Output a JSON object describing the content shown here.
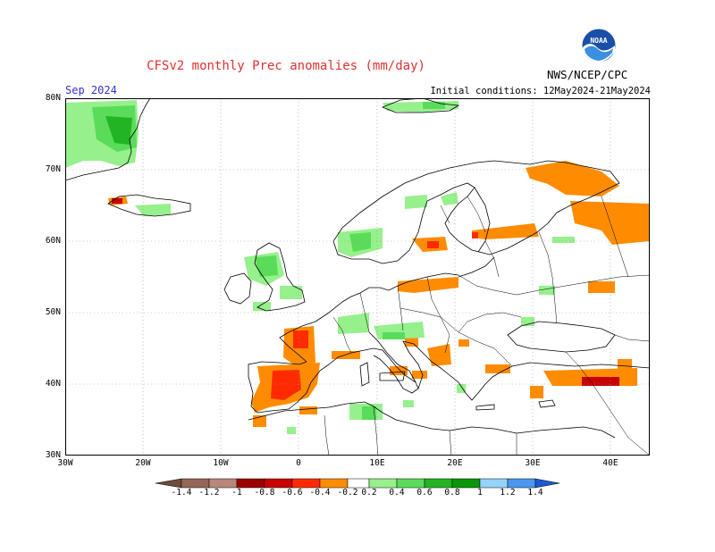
{
  "header": {
    "title": "CFSv2 monthly Prec anomalies (mm/day)",
    "org": "NWS/NCEP/CPC",
    "logo_text": "NOAA",
    "valid_month": "Sep 2024",
    "initial_conditions": "Initial conditions: 12May2024-21May2024"
  },
  "axes": {
    "lat_labels": [
      "80N",
      "70N",
      "60N",
      "50N",
      "40N",
      "30N"
    ],
    "lon_labels": [
      "30W",
      "20W",
      "10W",
      "0",
      "10E",
      "20E",
      "30E",
      "40E"
    ],
    "lon_range": [
      -30,
      45
    ],
    "lat_range": [
      30,
      80
    ]
  },
  "colorbar": {
    "labels": [
      "-1.4",
      "-1.2",
      "-1",
      "-0.8",
      "-0.6",
      "-0.4",
      "-0.2",
      "0.2",
      "0.4",
      "0.6",
      "0.8",
      "1",
      "1.2",
      "1.4"
    ],
    "colors": [
      "#6e4a3c",
      "#946656",
      "#b8877a",
      "#9b0000",
      "#c80000",
      "#ff2a00",
      "#ff8c00",
      "#ffffff",
      "#96f08c",
      "#5adc5a",
      "#22b422",
      "#0a960a",
      "#96d2fa",
      "#4b96f0",
      "#1e5ad2"
    ]
  },
  "anomalies": {
    "positive": [
      {
        "region": "Greenland",
        "level": 0.6
      },
      {
        "region": "Iceland",
        "level": 0.4
      },
      {
        "region": "Scotland",
        "level": 0.6
      },
      {
        "region": "Western Norway",
        "level": 0.4
      },
      {
        "region": "Svalbard",
        "level": 0.4
      },
      {
        "region": "Alps",
        "level": 0.4
      },
      {
        "region": "Tunisia",
        "level": 0.4
      }
    ],
    "negative": [
      {
        "region": "Iberia",
        "level": -0.6
      },
      {
        "region": "Western France",
        "level": -0.4
      },
      {
        "region": "Southern Sweden",
        "level": -0.4
      },
      {
        "region": "Kola Peninsula",
        "level": -0.4
      },
      {
        "region": "Western Russia",
        "level": -0.4
      },
      {
        "region": "Balkans",
        "level": -0.4
      },
      {
        "region": "Eastern Turkey",
        "level": -0.8
      }
    ]
  }
}
